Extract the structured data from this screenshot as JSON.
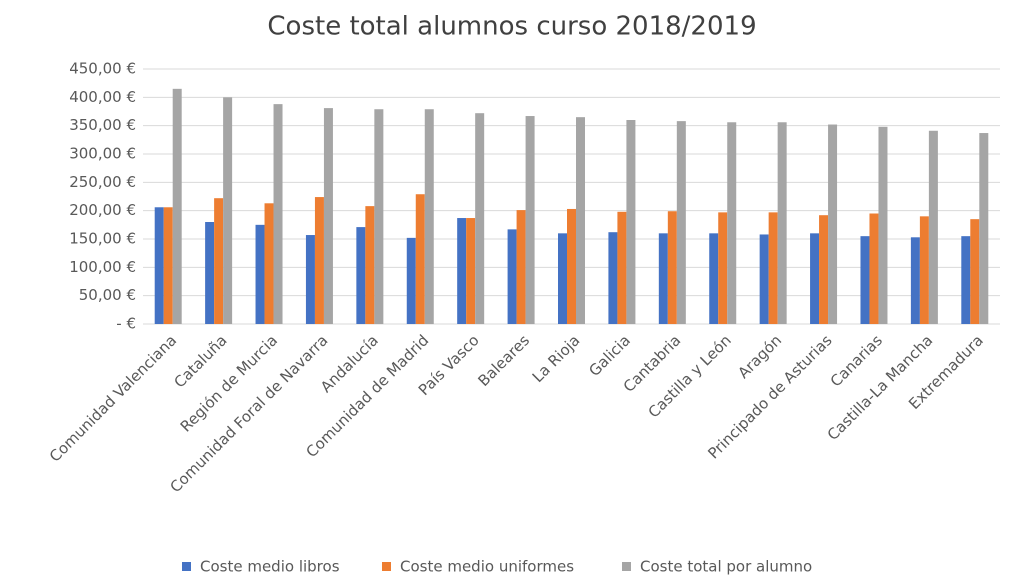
{
  "chart_data": {
    "type": "bar",
    "title": "Coste total alumnos curso 2018/2019",
    "categories": [
      "Comunidad Valenciana",
      "Cataluña",
      "Región de Murcia",
      "Comunidad Foral de Navarra",
      "Andalucía",
      "Comunidad de Madrid",
      "País Vasco",
      "Baleares",
      "La Rioja",
      "Galicia",
      "Cantabria",
      "Castilla y León",
      "Aragón",
      "Principado de Asturias",
      "Canarias",
      "Castilla-La Mancha",
      "Extremadura"
    ],
    "series": [
      {
        "name": "Coste medio libros",
        "color": "#4472c4",
        "values": [
          206,
          180,
          175,
          157,
          171,
          152,
          187,
          167,
          160,
          162,
          160,
          160,
          158,
          160,
          155,
          153,
          155
        ]
      },
      {
        "name": "Coste medio uniformes",
        "color": "#ed7d31",
        "values": [
          206,
          222,
          213,
          224,
          208,
          229,
          187,
          201,
          203,
          198,
          199,
          197,
          197,
          192,
          195,
          190,
          185
        ]
      },
      {
        "name": "Coste total por alumno",
        "color": "#a5a5a5",
        "values": [
          415,
          400,
          388,
          381,
          379,
          379,
          372,
          367,
          365,
          360,
          358,
          356,
          356,
          352,
          348,
          341,
          337
        ]
      }
    ],
    "ylim": [
      0,
      450
    ],
    "yticks": [
      {
        "value": 0,
        "label": "- €"
      },
      {
        "value": 50,
        "label": "50,00 €"
      },
      {
        "value": 100,
        "label": "100,00 €"
      },
      {
        "value": 150,
        "label": "150,00 €"
      },
      {
        "value": 200,
        "label": "200,00 €"
      },
      {
        "value": 250,
        "label": "250,00 €"
      },
      {
        "value": 300,
        "label": "300,00 €"
      },
      {
        "value": 350,
        "label": "350,00 €"
      },
      {
        "value": 400,
        "label": "400,00 €"
      },
      {
        "value": 450,
        "label": "450,00 €"
      }
    ],
    "grid": true
  }
}
